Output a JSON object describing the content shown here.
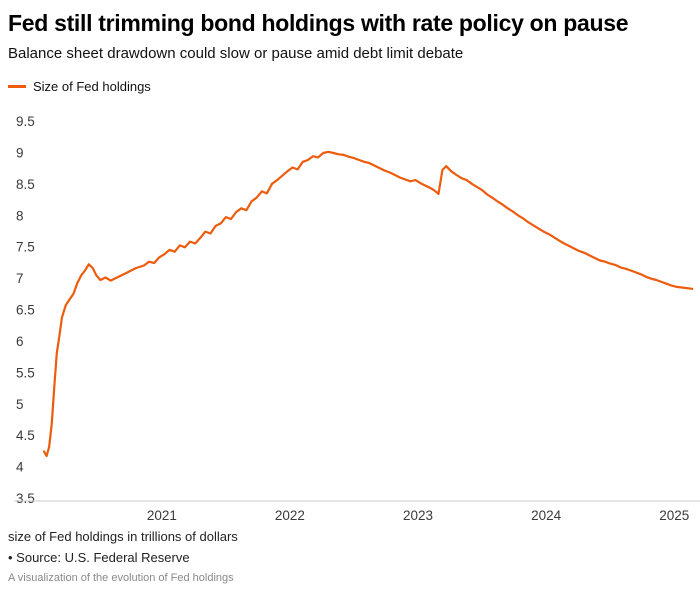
{
  "header": {
    "title": "Fed still trimming bond holdings with rate policy on pause",
    "subtitle": "Balance sheet drawdown could slow or pause amid debt limit debate"
  },
  "legend": {
    "label": "Size of Fed holdings"
  },
  "footer": {
    "note1": "size of Fed holdings in trillions of dollars",
    "note2": "• Source: U.S. Federal Reserve",
    "note3": "A visualization of the evolution of Fed holdings"
  },
  "chart_data": {
    "type": "line",
    "title": "Fed still trimming bond holdings with rate policy on pause",
    "subtitle": "Balance sheet drawdown could slow or pause amid debt limit debate",
    "xlabel": "",
    "ylabel": "size of Fed holdings in trillions of dollars",
    "grid": false,
    "legend_position": "top-left",
    "x_range": [
      2020.08,
      2025.17
    ],
    "y_range": [
      3.5,
      9.5
    ],
    "x_ticks": [
      2021,
      2022,
      2023,
      2024,
      2025
    ],
    "y_ticks": [
      3.5,
      4,
      4.5,
      5,
      5.5,
      6,
      6.5,
      7,
      7.5,
      8,
      8.5,
      9,
      9.5
    ],
    "series": [
      {
        "name": "Size of Fed holdings",
        "color": "#ED5C0C",
        "points": [
          [
            2020.08,
            4.24
          ],
          [
            2020.1,
            4.17
          ],
          [
            2020.12,
            4.31
          ],
          [
            2020.14,
            4.67
          ],
          [
            2020.16,
            5.25
          ],
          [
            2020.18,
            5.81
          ],
          [
            2020.2,
            6.08
          ],
          [
            2020.22,
            6.37
          ],
          [
            2020.25,
            6.57
          ],
          [
            2020.28,
            6.66
          ],
          [
            2020.31,
            6.75
          ],
          [
            2020.34,
            6.92
          ],
          [
            2020.37,
            7.04
          ],
          [
            2020.4,
            7.12
          ],
          [
            2020.43,
            7.22
          ],
          [
            2020.46,
            7.16
          ],
          [
            2020.49,
            7.04
          ],
          [
            2020.52,
            6.97
          ],
          [
            2020.56,
            7.01
          ],
          [
            2020.6,
            6.96
          ],
          [
            2020.64,
            7.0
          ],
          [
            2020.68,
            7.04
          ],
          [
            2020.72,
            7.08
          ],
          [
            2020.76,
            7.12
          ],
          [
            2020.8,
            7.16
          ],
          [
            2020.86,
            7.2
          ],
          [
            2020.9,
            7.26
          ],
          [
            2020.94,
            7.24
          ],
          [
            2020.98,
            7.33
          ],
          [
            2021.02,
            7.38
          ],
          [
            2021.06,
            7.45
          ],
          [
            2021.1,
            7.42
          ],
          [
            2021.14,
            7.52
          ],
          [
            2021.18,
            7.49
          ],
          [
            2021.22,
            7.58
          ],
          [
            2021.26,
            7.55
          ],
          [
            2021.3,
            7.64
          ],
          [
            2021.34,
            7.74
          ],
          [
            2021.38,
            7.71
          ],
          [
            2021.42,
            7.83
          ],
          [
            2021.46,
            7.87
          ],
          [
            2021.5,
            7.97
          ],
          [
            2021.54,
            7.94
          ],
          [
            2021.58,
            8.05
          ],
          [
            2021.62,
            8.11
          ],
          [
            2021.66,
            8.08
          ],
          [
            2021.7,
            8.22
          ],
          [
            2021.74,
            8.28
          ],
          [
            2021.78,
            8.38
          ],
          [
            2021.82,
            8.35
          ],
          [
            2021.86,
            8.5
          ],
          [
            2021.9,
            8.56
          ],
          [
            2021.94,
            8.63
          ],
          [
            2021.98,
            8.7
          ],
          [
            2022.02,
            8.76
          ],
          [
            2022.06,
            8.73
          ],
          [
            2022.1,
            8.85
          ],
          [
            2022.14,
            8.88
          ],
          [
            2022.18,
            8.94
          ],
          [
            2022.22,
            8.92
          ],
          [
            2022.26,
            8.99
          ],
          [
            2022.3,
            9.01
          ],
          [
            2022.34,
            8.99
          ],
          [
            2022.38,
            8.97
          ],
          [
            2022.42,
            8.96
          ],
          [
            2022.46,
            8.93
          ],
          [
            2022.5,
            8.91
          ],
          [
            2022.54,
            8.88
          ],
          [
            2022.58,
            8.85
          ],
          [
            2022.62,
            8.83
          ],
          [
            2022.66,
            8.79
          ],
          [
            2022.7,
            8.75
          ],
          [
            2022.74,
            8.71
          ],
          [
            2022.78,
            8.68
          ],
          [
            2022.82,
            8.64
          ],
          [
            2022.86,
            8.6
          ],
          [
            2022.9,
            8.57
          ],
          [
            2022.94,
            8.54
          ],
          [
            2022.98,
            8.56
          ],
          [
            2023.02,
            8.51
          ],
          [
            2023.06,
            8.47
          ],
          [
            2023.1,
            8.43
          ],
          [
            2023.13,
            8.39
          ],
          [
            2023.16,
            8.34
          ],
          [
            2023.19,
            8.72
          ],
          [
            2023.22,
            8.78
          ],
          [
            2023.26,
            8.7
          ],
          [
            2023.3,
            8.64
          ],
          [
            2023.34,
            8.59
          ],
          [
            2023.38,
            8.56
          ],
          [
            2023.42,
            8.5
          ],
          [
            2023.46,
            8.45
          ],
          [
            2023.5,
            8.4
          ],
          [
            2023.54,
            8.33
          ],
          [
            2023.58,
            8.28
          ],
          [
            2023.62,
            8.22
          ],
          [
            2023.66,
            8.17
          ],
          [
            2023.7,
            8.11
          ],
          [
            2023.74,
            8.06
          ],
          [
            2023.78,
            8.0
          ],
          [
            2023.82,
            7.95
          ],
          [
            2023.86,
            7.89
          ],
          [
            2023.9,
            7.84
          ],
          [
            2023.94,
            7.79
          ],
          [
            2023.98,
            7.74
          ],
          [
            2024.02,
            7.7
          ],
          [
            2024.06,
            7.65
          ],
          [
            2024.1,
            7.6
          ],
          [
            2024.14,
            7.55
          ],
          [
            2024.18,
            7.51
          ],
          [
            2024.22,
            7.47
          ],
          [
            2024.26,
            7.43
          ],
          [
            2024.3,
            7.4
          ],
          [
            2024.34,
            7.36
          ],
          [
            2024.38,
            7.32
          ],
          [
            2024.42,
            7.28
          ],
          [
            2024.46,
            7.26
          ],
          [
            2024.5,
            7.23
          ],
          [
            2024.54,
            7.21
          ],
          [
            2024.58,
            7.17
          ],
          [
            2024.62,
            7.15
          ],
          [
            2024.66,
            7.12
          ],
          [
            2024.7,
            7.09
          ],
          [
            2024.74,
            7.06
          ],
          [
            2024.78,
            7.02
          ],
          [
            2024.82,
            6.99
          ],
          [
            2024.86,
            6.97
          ],
          [
            2024.9,
            6.94
          ],
          [
            2024.94,
            6.91
          ],
          [
            2024.98,
            6.88
          ],
          [
            2025.02,
            6.86
          ],
          [
            2025.06,
            6.85
          ],
          [
            2025.1,
            6.84
          ],
          [
            2025.14,
            6.83
          ]
        ]
      }
    ]
  }
}
